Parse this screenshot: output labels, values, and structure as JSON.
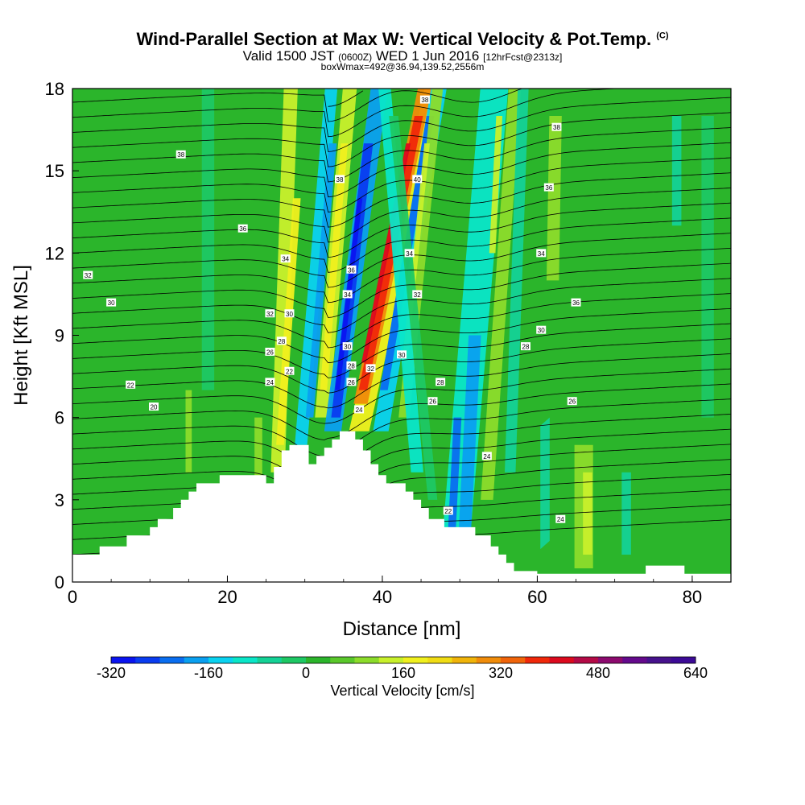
{
  "title": {
    "main": "Wind-Parallel Section at Max W: Vertical Velocity & Pot.Temp.",
    "copyright": "(C)"
  },
  "subtitle": {
    "valid_prefix": "Valid 1500 JST",
    "utc": "(0600Z)",
    "date": "WED 1 Jun 2016",
    "forecast": "[12hrFcst@2313z]"
  },
  "subtitle2": "boxWmax=492@36.94,139.52,2556m",
  "colors": {
    "background_field": "#2bb52b",
    "contour": "#000000",
    "scale": [
      "#0a14f0",
      "#0a3cf0",
      "#0a6ef0",
      "#0aa0f0",
      "#0ad2f0",
      "#0ae6c8",
      "#14d296",
      "#1ec864",
      "#2bb52b",
      "#5ac82b",
      "#8cdc2b",
      "#c8f02b",
      "#f0f01e",
      "#f0dc14",
      "#f0b40a",
      "#f08c0a",
      "#f0640a",
      "#f0280a",
      "#dc0a1e",
      "#b40a46",
      "#8c0a6e",
      "#640a8c",
      "#46128c",
      "#3c0a96"
    ]
  },
  "chart_data": {
    "type": "heatmap",
    "xlabel": "Distance [nm]",
    "ylabel": "Height [Kft MSL]",
    "xlim": [
      0,
      85
    ],
    "ylim": [
      0,
      18
    ],
    "xticks": [
      0,
      20,
      40,
      60,
      80
    ],
    "yticks": [
      0,
      3,
      6,
      9,
      12,
      15,
      18
    ],
    "colorbar": {
      "label": "Vertical Velocity [cm/s]",
      "ticks": [
        -320,
        -160,
        0,
        160,
        320,
        480,
        640
      ],
      "min": -320,
      "max": 640
    },
    "terrain": [
      [
        0,
        1
      ],
      [
        3.5,
        1
      ],
      [
        3.5,
        1.3
      ],
      [
        7,
        1.3
      ],
      [
        7,
        1.7
      ],
      [
        10,
        1.7
      ],
      [
        10,
        2
      ],
      [
        11,
        2
      ],
      [
        11,
        2.3
      ],
      [
        13,
        2.3
      ],
      [
        13,
        2.7
      ],
      [
        14,
        2.7
      ],
      [
        14,
        3
      ],
      [
        15,
        3
      ],
      [
        15,
        3.3
      ],
      [
        16,
        3.3
      ],
      [
        16,
        3.6
      ],
      [
        19,
        3.6
      ],
      [
        19,
        3.9
      ],
      [
        25,
        3.9
      ],
      [
        25,
        3.6
      ],
      [
        26,
        3.6
      ],
      [
        26,
        4.2
      ],
      [
        27,
        4.2
      ],
      [
        27,
        4.8
      ],
      [
        28,
        4.8
      ],
      [
        28,
        5
      ],
      [
        30.5,
        5
      ],
      [
        30.5,
        4.3
      ],
      [
        31.5,
        4.3
      ],
      [
        31.5,
        4.6
      ],
      [
        32.5,
        4.6
      ],
      [
        32.5,
        4.9
      ],
      [
        33.5,
        4.9
      ],
      [
        33.5,
        5.2
      ],
      [
        34.5,
        5.2
      ],
      [
        34.5,
        5.5
      ],
      [
        36.5,
        5.5
      ],
      [
        36.5,
        5.2
      ],
      [
        37.5,
        5.2
      ],
      [
        37.5,
        4.8
      ],
      [
        38.5,
        4.8
      ],
      [
        38.5,
        4.3
      ],
      [
        39.5,
        4.3
      ],
      [
        39.5,
        3.9
      ],
      [
        40.5,
        3.9
      ],
      [
        40.5,
        3.6
      ],
      [
        43,
        3.6
      ],
      [
        43,
        3.3
      ],
      [
        44,
        3.3
      ],
      [
        44,
        3
      ],
      [
        45,
        3
      ],
      [
        45,
        2.7
      ],
      [
        46,
        2.7
      ],
      [
        46,
        2.3
      ],
      [
        48,
        2.3
      ],
      [
        48,
        2
      ],
      [
        52,
        2
      ],
      [
        52,
        1.7
      ],
      [
        54,
        1.7
      ],
      [
        54,
        1.3
      ],
      [
        55,
        1.3
      ],
      [
        55,
        1
      ],
      [
        56,
        1
      ],
      [
        56,
        0.7
      ],
      [
        57,
        0.7
      ],
      [
        57,
        0.4
      ],
      [
        60,
        0.4
      ],
      [
        60,
        0.3
      ],
      [
        74,
        0.3
      ],
      [
        74,
        0.6
      ],
      [
        79,
        0.6
      ],
      [
        79,
        0.3
      ],
      [
        85,
        0.3
      ],
      [
        85,
        0
      ]
    ],
    "contour_labels": [
      {
        "text": "38",
        "x": 14,
        "y": 15.6
      },
      {
        "text": "36",
        "x": 22,
        "y": 12.9
      },
      {
        "text": "32",
        "x": 2,
        "y": 11.2
      },
      {
        "text": "30",
        "x": 5,
        "y": 10.2
      },
      {
        "text": "22",
        "x": 7.5,
        "y": 7.2
      },
      {
        "text": "20",
        "x": 10.5,
        "y": 6.4
      },
      {
        "text": "34",
        "x": 27.5,
        "y": 11.8
      },
      {
        "text": "32",
        "x": 25.5,
        "y": 9.8
      },
      {
        "text": "30",
        "x": 28,
        "y": 9.8
      },
      {
        "text": "28",
        "x": 27,
        "y": 8.8
      },
      {
        "text": "26",
        "x": 25.5,
        "y": 8.4
      },
      {
        "text": "24",
        "x": 25.5,
        "y": 7.3
      },
      {
        "text": "22",
        "x": 28,
        "y": 7.7
      },
      {
        "text": "38",
        "x": 34.5,
        "y": 14.7
      },
      {
        "text": "36",
        "x": 36,
        "y": 11.4
      },
      {
        "text": "34",
        "x": 35.5,
        "y": 10.5
      },
      {
        "text": "30",
        "x": 35.5,
        "y": 8.6
      },
      {
        "text": "28",
        "x": 36,
        "y": 7.9
      },
      {
        "text": "26",
        "x": 36,
        "y": 7.3
      },
      {
        "text": "24",
        "x": 37,
        "y": 6.3
      },
      {
        "text": "32",
        "x": 38.5,
        "y": 7.8
      },
      {
        "text": "38",
        "x": 45.5,
        "y": 17.6
      },
      {
        "text": "40",
        "x": 44.5,
        "y": 14.7
      },
      {
        "text": "34",
        "x": 43.5,
        "y": 12.0
      },
      {
        "text": "32",
        "x": 44.5,
        "y": 10.5
      },
      {
        "text": "30",
        "x": 42.5,
        "y": 8.3
      },
      {
        "text": "28",
        "x": 47.5,
        "y": 7.3
      },
      {
        "text": "26",
        "x": 46.5,
        "y": 6.6
      },
      {
        "text": "24",
        "x": 53.5,
        "y": 4.6
      },
      {
        "text": "22",
        "x": 48.5,
        "y": 2.6
      },
      {
        "text": "38",
        "x": 62.5,
        "y": 16.6
      },
      {
        "text": "36",
        "x": 61.5,
        "y": 14.4
      },
      {
        "text": "34",
        "x": 60.5,
        "y": 12.0
      },
      {
        "text": "36",
        "x": 65,
        "y": 10.2
      },
      {
        "text": "30",
        "x": 60.5,
        "y": 9.2
      },
      {
        "text": "28",
        "x": 58.5,
        "y": 8.6
      },
      {
        "text": "26",
        "x": 64.5,
        "y": 6.6
      },
      {
        "text": "24",
        "x": 63,
        "y": 2.3
      }
    ]
  }
}
